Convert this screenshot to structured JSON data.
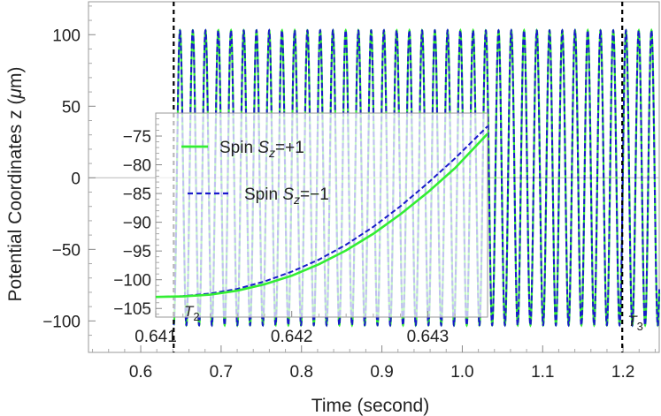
{
  "chart_data": [
    {
      "type": "line",
      "title": "",
      "xlabel": "Time (second)",
      "ylabel": "Potential Coordinates z (μm)",
      "xlim": [
        0.535,
        1.245
      ],
      "ylim": [
        -122,
        123
      ],
      "xticks": [
        0.6,
        0.7,
        0.8,
        0.9,
        1.0,
        1.1,
        1.2
      ],
      "xtick_labels": [
        "0.6",
        "0.7",
        "0.8",
        "0.9",
        "1.0",
        "1.1",
        "1.2"
      ],
      "yticks": [
        -100,
        -50,
        0,
        50,
        100
      ],
      "ytick_labels": [
        "−100",
        "−50",
        "0",
        "50",
        "100"
      ],
      "grid": false,
      "series": [
        {
          "name": "Spin S_z=+1",
          "color": "#33ee33",
          "style": "solid",
          "amplitude": 103,
          "offset": 0,
          "oscillation_period_s": 0.01585,
          "start_time": 0.641,
          "start_value": -103
        },
        {
          "name": "Spin S_z=−1",
          "color": "#1a1acc",
          "style": "dashed",
          "amplitude": 103,
          "offset": 0,
          "oscillation_period_s": 0.01585,
          "start_time": 0.641,
          "start_value": -103
        }
      ],
      "vlines": [
        {
          "x": 0.641,
          "label": "T",
          "label_sub": "2",
          "style": "dashed",
          "color": "#000000"
        },
        {
          "x": 1.199,
          "label": "T",
          "label_sub": "3",
          "style": "dashed",
          "color": "#000000"
        }
      ]
    },
    {
      "type": "line",
      "title": "inset",
      "xlim": [
        0.641,
        0.64344
      ],
      "ylim": [
        -106.5,
        -71
      ],
      "xticks": [
        0.641,
        0.642,
        0.643
      ],
      "xtick_labels": [
        "0.641",
        "0.642",
        "0.643"
      ],
      "yticks": [
        -105,
        -100,
        -95,
        -90,
        -85,
        -80,
        -75
      ],
      "ytick_labels": [
        "−105",
        "−100",
        "−95",
        "−90",
        "−85",
        "−80",
        "−75"
      ],
      "legend_position": "top-left",
      "series": [
        {
          "name": "Spin S_z=+1",
          "color": "#33ee33",
          "style": "solid",
          "x": [
            0.641,
            0.6412,
            0.6414,
            0.6416,
            0.6418,
            0.642,
            0.6422,
            0.6424,
            0.6426,
            0.6428,
            0.643,
            0.6432,
            0.64344
          ],
          "y": [
            -103.0,
            -102.9,
            -102.6,
            -101.9,
            -100.8,
            -99.3,
            -97.3,
            -94.9,
            -92.0,
            -88.6,
            -84.8,
            -80.6,
            -74.6
          ]
        },
        {
          "name": "Spin S_z=−1",
          "color": "#1a1acc",
          "style": "dashed",
          "x": [
            0.641,
            0.6412,
            0.6414,
            0.6416,
            0.6418,
            0.642,
            0.6422,
            0.6424,
            0.6426,
            0.6428,
            0.643,
            0.6432,
            0.64344
          ],
          "y": [
            -103.0,
            -102.85,
            -102.4,
            -101.6,
            -100.3,
            -98.6,
            -96.5,
            -93.9,
            -90.8,
            -87.2,
            -83.2,
            -78.9,
            -73.3
          ]
        }
      ],
      "annotation": {
        "x": 0.641,
        "label": "T",
        "label_sub": "2"
      },
      "legend": [
        {
          "prefix": "Spin ",
          "sym": "S",
          "sub": "z",
          "suffix": "=+1"
        },
        {
          "prefix": "Spin ",
          "sym": "S",
          "sub": "z",
          "suffix": "=−1"
        }
      ]
    }
  ]
}
